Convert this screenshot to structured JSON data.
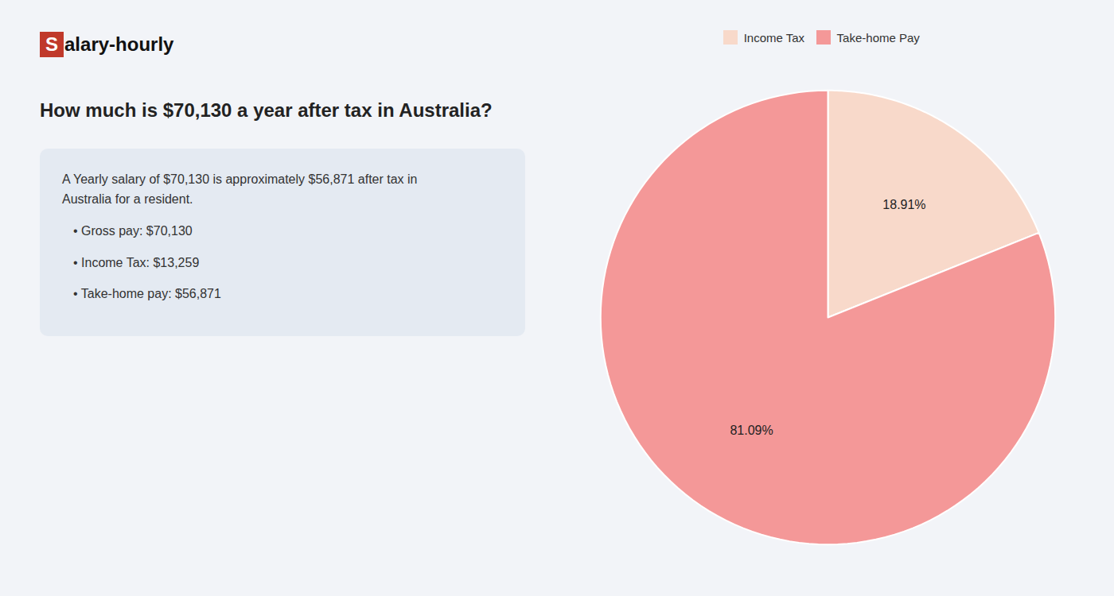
{
  "chart_data": {
    "type": "pie",
    "title": "How much is $70,130 a year after tax in Australia?",
    "annotations": [
      "Salary-hourly",
      "A Yearly salary of $70,130 is approximately $56,871 after tax in",
      "Australia for a resident.",
      "• Gross pay: $70,130",
      "• Income Tax: $13,259",
      "• Take-home pay: $56,871"
    ],
    "categories": [
      "Income Tax",
      "Take-home Pay"
    ],
    "values": [
      18.91,
      81.09
    ],
    "value_labels": [
      "18.91%",
      "81.09%"
    ],
    "colors": [
      "#f8d9ca",
      "#f49898"
    ],
    "data_labels": true,
    "legend": "top"
  }
}
